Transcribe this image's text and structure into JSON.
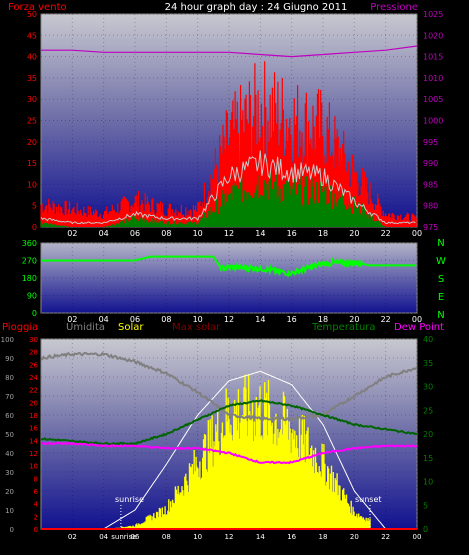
{
  "header": {
    "left_label": "Forza vento",
    "title": "24 hour graph day : 24 Giugno 2011",
    "right_label": "Pressione"
  },
  "colors": {
    "wind": "#ff0000",
    "gust": "#008000",
    "avg_line": "#c8c8c8",
    "pressure": "#c000c0",
    "direction": "#00ff00",
    "humidity": "#808080",
    "solar": "#ffff00",
    "max_solar": "#ffffff",
    "temperature": "#006400",
    "dew_point": "#ff00ff",
    "rain": "#ff0000"
  },
  "chart_data": [
    {
      "type": "line",
      "panel": "wind-pressure",
      "x_ticks": [
        "02",
        "04",
        "06",
        "08",
        "10",
        "12",
        "14",
        "16",
        "18",
        "20",
        "22",
        "00"
      ],
      "left_axis": {
        "label": "Forza vento",
        "ticks": [
          0,
          5,
          10,
          15,
          20,
          25,
          30,
          35,
          40,
          45,
          50
        ],
        "ylim": [
          0,
          50
        ]
      },
      "right_axis": {
        "label": "Pressione",
        "ticks": [
          975,
          980,
          985,
          990,
          995,
          1000,
          1005,
          1010,
          1015,
          1020,
          1025
        ],
        "ylim": [
          975,
          1025
        ]
      },
      "x": [
        0,
        2,
        4,
        6,
        8,
        10,
        12,
        14,
        16,
        18,
        20,
        22,
        24
      ],
      "series": [
        {
          "name": "Forza vento",
          "axis": "left",
          "values": [
            5,
            4,
            3,
            6,
            4,
            4,
            20,
            27,
            24,
            22,
            12,
            3,
            2
          ]
        },
        {
          "name": "",
          "axis": "left",
          "values": [
            1,
            0,
            0,
            2,
            1,
            1,
            7,
            10,
            8,
            8,
            5,
            0,
            0
          ]
        },
        {
          "name": "",
          "axis": "left",
          "values": [
            2,
            1,
            1,
            3,
            2,
            2,
            12,
            15,
            13,
            12,
            6,
            1,
            1
          ]
        },
        {
          "name": "Pressione",
          "axis": "right",
          "values": [
            1016.5,
            1016.5,
            1016,
            1016,
            1016,
            1016,
            1016,
            1015.5,
            1015,
            1015.5,
            1016,
            1016.5,
            1017.5
          ]
        }
      ],
      "grid": true
    },
    {
      "type": "line",
      "panel": "wind-direction",
      "x_ticks": [
        "02",
        "04",
        "06",
        "08",
        "10",
        "12",
        "14",
        "16",
        "18",
        "20",
        "22",
        "00"
      ],
      "left_axis": {
        "ticks": [
          0,
          90,
          180,
          270,
          360
        ],
        "ylim": [
          0,
          360
        ]
      },
      "right_axis": {
        "ticks": [
          "N",
          "W",
          "S",
          "E",
          "N"
        ]
      },
      "x": [
        0,
        2,
        4,
        6,
        7,
        8,
        10,
        11,
        11.5,
        12,
        14,
        15,
        16,
        17,
        18,
        20,
        21,
        24
      ],
      "series": [
        {
          "name": "",
          "values": [
            270,
            270,
            270,
            270,
            290,
            290,
            290,
            290,
            230,
            235,
            230,
            215,
            205,
            230,
            255,
            260,
            245,
            245
          ]
        }
      ],
      "grid": true
    },
    {
      "type": "line",
      "panel": "solar-temperature",
      "labels_top": [
        "Pioggia",
        "Umidita",
        "Solar",
        "Max solar",
        "Temperatura",
        "Dew Point"
      ],
      "x_ticks": [
        "02",
        "04",
        "sunrise",
        "06",
        "08",
        "10",
        "12",
        "14",
        "16",
        "18",
        "20",
        "22",
        "00"
      ],
      "annotations": [
        "sunrise",
        "sunset"
      ],
      "left_axis_outer": {
        "ticks": [
          0,
          10,
          20,
          30,
          40,
          50,
          60,
          70,
          80,
          90,
          100
        ],
        "ylim": [
          0,
          100
        ]
      },
      "left_axis_inner": {
        "ticks": [
          0,
          2,
          4,
          6,
          8,
          10,
          12,
          14,
          16,
          18,
          20,
          22,
          24,
          26,
          28,
          30
        ],
        "ylim": [
          0,
          30
        ]
      },
      "right_axis": {
        "ticks": [
          0,
          5,
          10,
          15,
          20,
          25,
          30,
          35,
          40
        ],
        "ylim": [
          0,
          40
        ]
      },
      "x": [
        0,
        2,
        4,
        6,
        8,
        10,
        12,
        14,
        16,
        18,
        20,
        22,
        24
      ],
      "series": [
        {
          "name": "Umidita",
          "axis": "left_outer",
          "values": [
            90,
            92,
            92,
            88,
            82,
            72,
            60,
            58,
            58,
            60,
            70,
            80,
            85
          ]
        },
        {
          "name": "Solar",
          "axis": "left_outer",
          "values": [
            0,
            0,
            0,
            2,
            12,
            40,
            70,
            72,
            60,
            40,
            10,
            0,
            0
          ]
        },
        {
          "name": "Max solar",
          "axis": "left_outer",
          "values": [
            0,
            0,
            0,
            10,
            34,
            60,
            78,
            83,
            76,
            55,
            20,
            0,
            0
          ]
        },
        {
          "name": "Temperatura",
          "axis": "right",
          "values": [
            19,
            18.5,
            18,
            18,
            20,
            23,
            26,
            27,
            26,
            24,
            22,
            21,
            20
          ]
        },
        {
          "name": "Dew Point",
          "axis": "right",
          "values": [
            18,
            18,
            17.5,
            17.5,
            17,
            17,
            16,
            14,
            14,
            16,
            17,
            17.5,
            17.5
          ]
        },
        {
          "name": "Pioggia",
          "axis": "left_inner",
          "values": [
            0,
            0,
            0,
            0,
            0,
            0,
            0,
            0,
            0,
            0,
            0,
            0,
            0
          ]
        }
      ],
      "grid": true
    }
  ]
}
